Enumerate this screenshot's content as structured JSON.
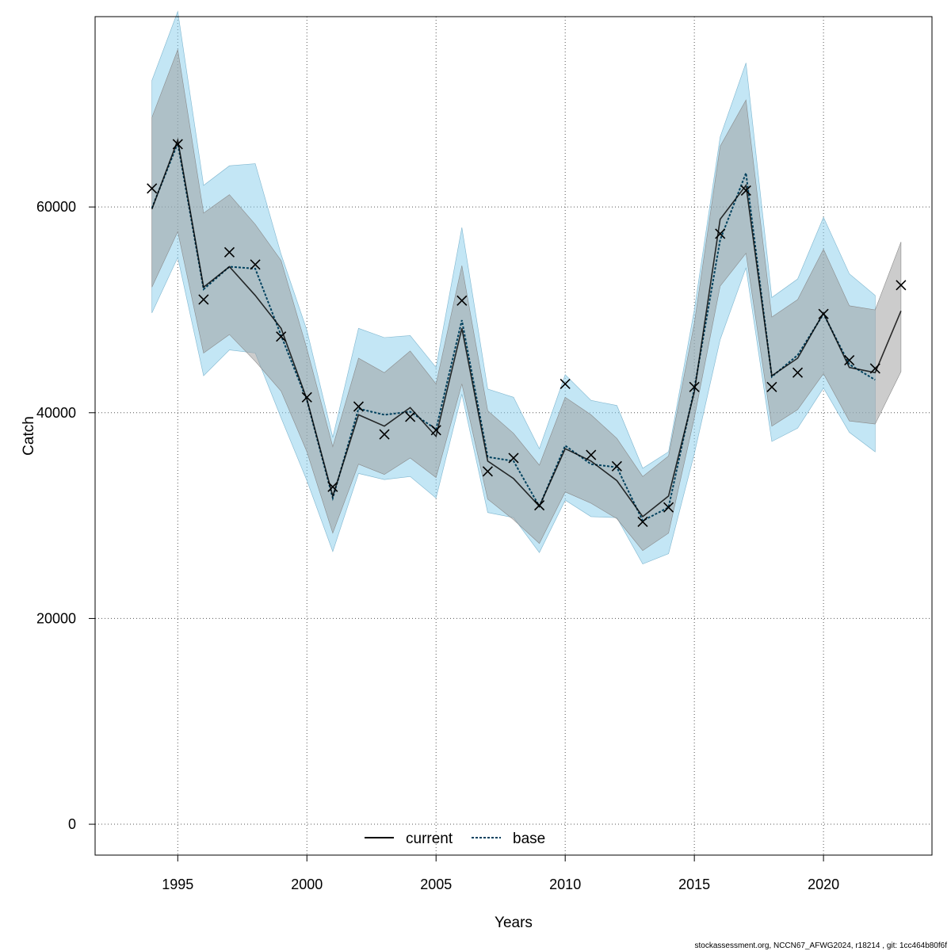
{
  "chart_data": {
    "type": "line",
    "xlabel": "Years",
    "ylabel": "Catch",
    "xlim": [
      1991.8,
      2024.2
    ],
    "ylim": [
      -3000,
      78500
    ],
    "xticks": [
      1995,
      2000,
      2005,
      2010,
      2015,
      2020
    ],
    "yticks": [
      0,
      20000,
      40000,
      60000
    ],
    "grid": true,
    "legend_position": "bottom-center",
    "colors": {
      "current_line": "#000000",
      "current_band": "#9a9a9a",
      "base_line": "#00415e",
      "base_band": "#87ceeb",
      "observed": "#000000"
    },
    "series": [
      {
        "name": "current",
        "x": [
          1994,
          1995,
          1996,
          1997,
          1998,
          1999,
          2000,
          2001,
          2002,
          2003,
          2004,
          2005,
          2006,
          2007,
          2008,
          2009,
          2010,
          2011,
          2012,
          2013,
          2014,
          2015,
          2016,
          2017,
          2018,
          2019,
          2020,
          2021,
          2022,
          2023
        ],
        "values": [
          59800,
          66500,
          52200,
          54200,
          51400,
          48200,
          41300,
          31900,
          39800,
          38700,
          40500,
          37700,
          48200,
          35300,
          33600,
          30900,
          36500,
          35300,
          33400,
          29900,
          31900,
          42000,
          58800,
          62100,
          43600,
          45300,
          49700,
          44400,
          43900,
          49900
        ],
        "lower": [
          52200,
          57600,
          45800,
          47600,
          45000,
          42100,
          36200,
          28300,
          35000,
          34000,
          35600,
          33700,
          42800,
          31600,
          29600,
          27300,
          32300,
          31200,
          29700,
          26600,
          28300,
          39500,
          52300,
          55500,
          38700,
          40300,
          43800,
          39200,
          38900,
          44000
        ],
        "upper": [
          68700,
          75300,
          59400,
          61200,
          58300,
          54800,
          46200,
          36700,
          45300,
          43900,
          46000,
          42800,
          54300,
          40200,
          38000,
          34900,
          41500,
          39800,
          37500,
          33800,
          35800,
          48700,
          65900,
          70400,
          49300,
          51000,
          55900,
          50400,
          50000,
          56600
        ]
      },
      {
        "name": "base",
        "x": [
          1994,
          1995,
          1996,
          1997,
          1998,
          1999,
          2000,
          2001,
          2002,
          2003,
          2004,
          2005,
          2006,
          2007,
          2008,
          2009,
          2010,
          2011,
          2012,
          2013,
          2014,
          2015,
          2016,
          2017,
          2018,
          2019,
          2020,
          2021,
          2022
        ],
        "values": [
          59900,
          66200,
          52000,
          54200,
          54000,
          47500,
          41200,
          31700,
          40400,
          39800,
          40100,
          38400,
          49000,
          35700,
          35300,
          30900,
          36800,
          35000,
          34700,
          29500,
          30800,
          42300,
          56800,
          63300,
          43500,
          45600,
          49600,
          44700,
          43200
        ],
        "lower": [
          49700,
          55100,
          43600,
          46100,
          45800,
          39500,
          33400,
          26500,
          34100,
          33500,
          33800,
          31700,
          41800,
          30300,
          29800,
          26400,
          31500,
          29900,
          29800,
          25300,
          26300,
          36000,
          47100,
          54100,
          37200,
          38500,
          42400,
          38100,
          36200
        ],
        "upper": [
          72300,
          79000,
          62100,
          64000,
          64200,
          55400,
          48000,
          37600,
          48200,
          47300,
          47500,
          44400,
          58000,
          42300,
          41500,
          36500,
          43700,
          41200,
          40700,
          34600,
          36200,
          50000,
          66800,
          74000,
          51200,
          53000,
          59000,
          53500,
          51400
        ]
      }
    ],
    "observed": {
      "x": [
        1994,
        1995,
        1996,
        1997,
        1998,
        1999,
        2000,
        2001,
        2002,
        2003,
        2004,
        2005,
        2006,
        2007,
        2008,
        2009,
        2010,
        2011,
        2012,
        2013,
        2014,
        2015,
        2016,
        2017,
        2018,
        2019,
        2020,
        2021,
        2022,
        2023
      ],
      "values": [
        61800,
        66100,
        51000,
        55600,
        54400,
        47400,
        41500,
        32800,
        40600,
        37900,
        39600,
        38300,
        50900,
        34300,
        35600,
        31000,
        42800,
        35900,
        34800,
        29400,
        30800,
        42500,
        57400,
        61600,
        42500,
        43900,
        49600,
        45100,
        44300,
        52400
      ]
    }
  },
  "legend": {
    "current": "current",
    "base": "base"
  },
  "footer": "stockassessment.org, NCCN67_AFWG2024, r18214 , git: 1cc464b80f6f"
}
